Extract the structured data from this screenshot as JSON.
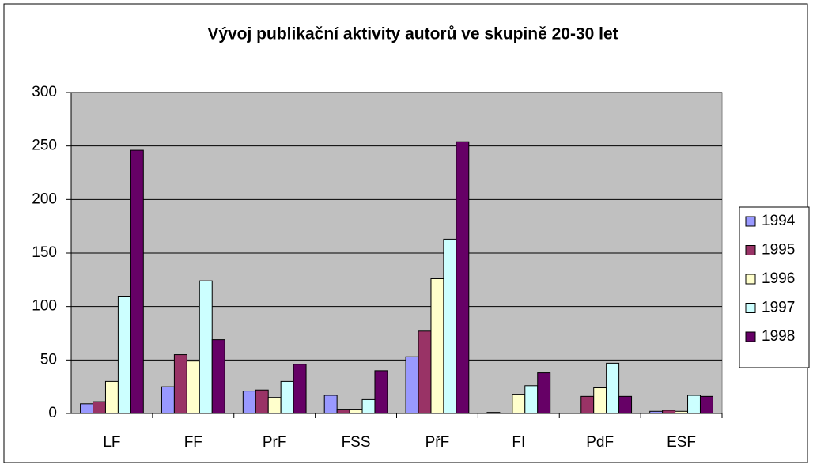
{
  "chart_data": {
    "type": "bar",
    "title": "Vývoj publikační aktivity autorů ve skupině 20-30 let",
    "categories": [
      "LF",
      "FF",
      "PrF",
      "FSS",
      "PřF",
      "FI",
      "PdF",
      "ESF"
    ],
    "series": [
      {
        "name": "1994",
        "color": "#9999ff",
        "values": [
          9,
          25,
          21,
          17,
          53,
          1,
          0,
          2
        ]
      },
      {
        "name": "1995",
        "color": "#993366",
        "values": [
          11,
          55,
          22,
          4,
          77,
          0,
          16,
          3
        ]
      },
      {
        "name": "1996",
        "color": "#ffffcc",
        "values": [
          30,
          49,
          15,
          4,
          126,
          18,
          24,
          2
        ]
      },
      {
        "name": "1997",
        "color": "#ccffff",
        "values": [
          109,
          124,
          30,
          13,
          163,
          26,
          47,
          17
        ]
      },
      {
        "name": "1998",
        "color": "#660066",
        "values": [
          246,
          69,
          46,
          40,
          254,
          38,
          16,
          16
        ]
      }
    ],
    "ylim": [
      0,
      300
    ],
    "yticks": [
      0,
      50,
      100,
      150,
      200,
      250,
      300
    ],
    "grid": true,
    "legend": "right"
  }
}
